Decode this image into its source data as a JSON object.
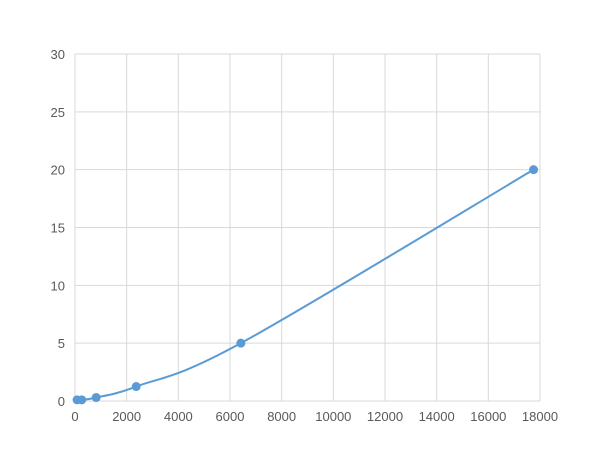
{
  "chart_data": {
    "type": "line",
    "title": "",
    "xlabel": "",
    "ylabel": "",
    "xlim": [
      0,
      18000
    ],
    "ylim": [
      0,
      30
    ],
    "xticks": [
      0,
      2000,
      4000,
      6000,
      8000,
      10000,
      12000,
      14000,
      16000,
      18000
    ],
    "yticks": [
      0,
      5,
      10,
      15,
      20,
      25,
      30
    ],
    "grid": true,
    "smooth": true,
    "series": [
      {
        "x": [
          80,
          260,
          820,
          2370,
          6420,
          17750
        ],
        "y": [
          0.1,
          0.1,
          0.3,
          1.25,
          5,
          20
        ],
        "color": "#5b9bd5"
      }
    ]
  }
}
